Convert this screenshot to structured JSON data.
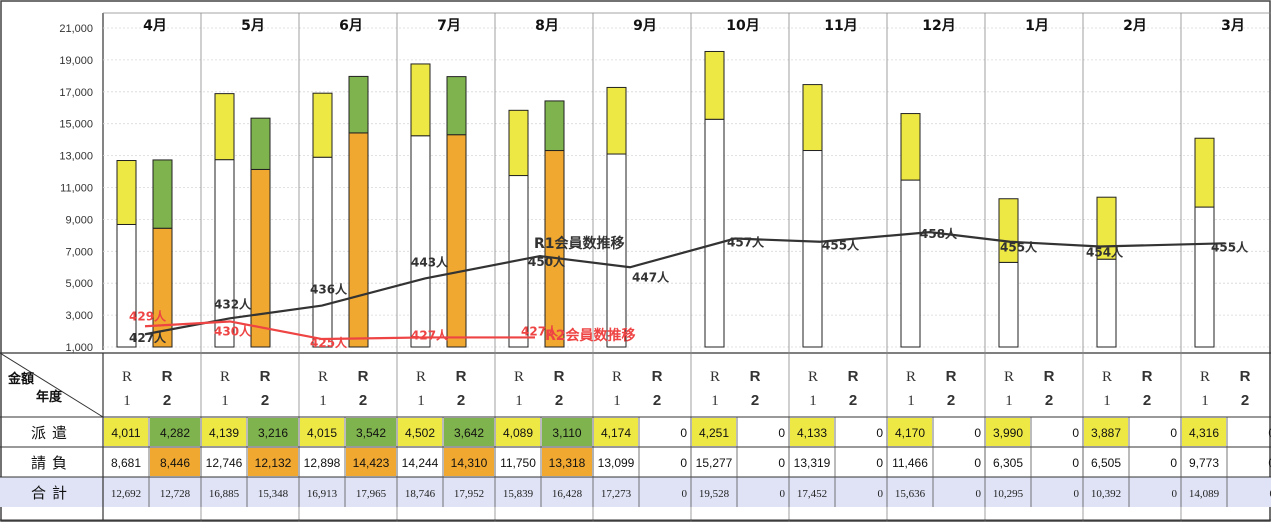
{
  "colors": {
    "haken_r1": "#eee845",
    "haken_r2": "#7fb34d",
    "ukeoi_r1": "#ffffff",
    "ukeoi_r2": "#f0a830",
    "total_row_bg": "#dfe3f5",
    "r1_line": "#333333",
    "r2_line": "#ee4444"
  },
  "chart_data": {
    "type": "bar",
    "categories": [
      "4月",
      "5月",
      "6月",
      "7月",
      "8月",
      "9月",
      "10月",
      "11月",
      "12月",
      "1月",
      "2月",
      "3月"
    ],
    "y_ticks": [
      "21,000",
      "19,000",
      "17,000",
      "15,000",
      "13,000",
      "11,000",
      "9,000",
      "7,000",
      "5,000",
      "3,000",
      "1,000"
    ],
    "ylim": [
      1000,
      21000
    ],
    "stacked_bars": {
      "R1": {
        "ukeoi": [
          8681,
          12746,
          12898,
          14244,
          11750,
          13099,
          15277,
          13319,
          11466,
          6305,
          6505,
          9773
        ],
        "haken": [
          4011,
          4139,
          4015,
          4502,
          4089,
          4174,
          4251,
          4133,
          4170,
          3990,
          3887,
          4316
        ]
      },
      "R2": {
        "ukeoi": [
          8446,
          12132,
          14423,
          14310,
          13318,
          0,
          0,
          0,
          0,
          0,
          0,
          0
        ],
        "haken": [
          4282,
          3216,
          3542,
          3642,
          3110,
          0,
          0,
          0,
          0,
          0,
          0,
          0
        ]
      }
    },
    "series": [
      {
        "name": "R1会員数推移",
        "points": [
          [
            0,
            1800
          ],
          [
            1,
            2800
          ],
          [
            2,
            3600
          ],
          [
            3,
            5300
          ],
          [
            4,
            6700
          ],
          [
            5,
            6000
          ],
          [
            6,
            7800
          ],
          [
            7,
            7600
          ],
          [
            8,
            8200
          ],
          [
            9,
            7600
          ],
          [
            10,
            7300
          ],
          [
            11,
            7500
          ]
        ],
        "labels": [
          "427人",
          "432人",
          "436人",
          "443人",
          "450人",
          "447人",
          "457人",
          "455人",
          "458人",
          "455人",
          "454人",
          "455人"
        ]
      },
      {
        "name": "R2会員数推移",
        "points": [
          [
            0,
            2300
          ],
          [
            1,
            2600
          ],
          [
            2,
            1500
          ],
          [
            3,
            1600
          ],
          [
            4,
            1600
          ]
        ],
        "labels": [
          "429人",
          "430人",
          "425人",
          "427人",
          "427人"
        ]
      }
    ]
  },
  "table": {
    "corner_top": "金額",
    "corner_bottom": "年度",
    "year_r": "R",
    "year_1": "1",
    "year_2": "2",
    "rows": [
      {
        "name": "派遣",
        "values": [
          "4,011",
          "4,282",
          "4,139",
          "3,216",
          "4,015",
          "3,542",
          "4,502",
          "3,642",
          "4,089",
          "3,110",
          "4,174",
          "0",
          "4,251",
          "0",
          "4,133",
          "0",
          "4,170",
          "0",
          "3,990",
          "0",
          "3,887",
          "0",
          "4,316",
          "0"
        ]
      },
      {
        "name": "請負",
        "values": [
          "8,681",
          "8,446",
          "12,746",
          "12,132",
          "12,898",
          "14,423",
          "14,244",
          "14,310",
          "11,750",
          "13,318",
          "13,099",
          "0",
          "15,277",
          "0",
          "13,319",
          "0",
          "11,466",
          "0",
          "6,305",
          "0",
          "6,505",
          "0",
          "9,773",
          "0"
        ]
      },
      {
        "name": "合計",
        "values": [
          "12,692",
          "12,728",
          "16,885",
          "15,348",
          "16,913",
          "17,965",
          "18,746",
          "17,952",
          "15,839",
          "16,428",
          "17,273",
          "0",
          "19,528",
          "0",
          "17,452",
          "0",
          "15,636",
          "0",
          "10,295",
          "0",
          "10,392",
          "0",
          "14,089",
          "0"
        ]
      }
    ]
  }
}
